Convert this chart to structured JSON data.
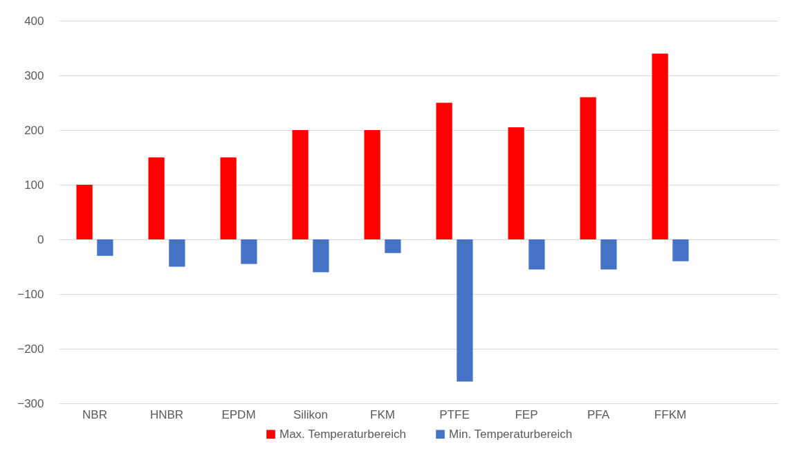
{
  "chart_data": {
    "type": "bar",
    "categories": [
      "NBR",
      "HNBR",
      "EPDM",
      "Silikon",
      "FKM",
      "PTFE",
      "FEP",
      "PFA",
      "FFKM",
      null
    ],
    "series": [
      {
        "name": "Max. Temperaturbereich",
        "color": "#ff0000",
        "values": [
          100,
          150,
          150,
          200,
          200,
          250,
          205,
          260,
          340,
          null
        ]
      },
      {
        "name": "Min. Temperaturbereich",
        "color": "#4472c4",
        "values": [
          -30,
          -50,
          -45,
          -60,
          -25,
          -260,
          -55,
          -55,
          -40,
          null
        ]
      }
    ],
    "ylim": [
      -300,
      400
    ],
    "yticks": [
      -300,
      -200,
      -100,
      0,
      100,
      200,
      300,
      400
    ],
    "grid": "y",
    "legend": "bottom"
  }
}
